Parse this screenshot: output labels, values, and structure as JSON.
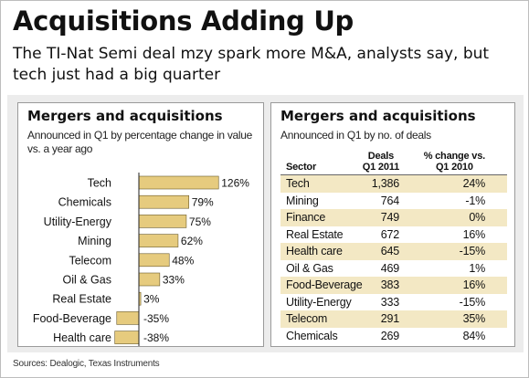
{
  "title": "Acquisitions Adding Up",
  "subtitle": "The TI-Nat Semi deal mzy spark more M&A, analysts say, but tech just had a big quarter",
  "footer": "Sources: Dealogic, Texas Instruments",
  "colors": {
    "bar": "#e6cb7e",
    "bar_stroke": "#6a5a2a",
    "row_shade": "#f3e8c4",
    "band": "#ececec"
  },
  "chart_data": [
    {
      "type": "bar",
      "orientation": "horizontal",
      "title": "Mergers and acquisitions",
      "subtitle": "Announced in Q1 by percentage change in value vs. a year ago",
      "categories": [
        "Tech",
        "Chemicals",
        "Utility-Energy",
        "Mining",
        "Telecom",
        "Oil & Gas",
        "Real Estate",
        "Food-Beverage",
        "Health care"
      ],
      "values": [
        126,
        79,
        75,
        62,
        48,
        33,
        3,
        -35,
        -38
      ],
      "value_labels": [
        "126%",
        "79%",
        "75%",
        "62%",
        "48%",
        "33%",
        "3%",
        "-35%",
        "-38%"
      ],
      "xlim": [
        -40,
        130
      ],
      "grid": false,
      "legend": "none"
    },
    {
      "type": "table",
      "title": "Mergers and acquisitions",
      "subtitle": "Announced in Q1 by no. of deals",
      "columns": [
        "Sector",
        "Deals Q1 2011",
        "% change vs. Q1 2010"
      ],
      "column_lines": [
        [
          "Sector"
        ],
        [
          "Deals",
          "Q1 2011"
        ],
        [
          "% change vs.",
          "Q1 2010"
        ]
      ],
      "rows": [
        [
          "Tech",
          "1,386",
          "24%"
        ],
        [
          "Mining",
          "764",
          "-1%"
        ],
        [
          "Finance",
          "749",
          "0%"
        ],
        [
          "Real Estate",
          "672",
          "16%"
        ],
        [
          "Health care",
          "645",
          "-15%"
        ],
        [
          "Oil & Gas",
          "469",
          "1%"
        ],
        [
          "Food-Beverage",
          "383",
          "16%"
        ],
        [
          "Utility-Energy",
          "333",
          "-15%"
        ],
        [
          "Telecom",
          "291",
          "35%"
        ],
        [
          "Chemicals",
          "269",
          "84%"
        ]
      ]
    }
  ]
}
